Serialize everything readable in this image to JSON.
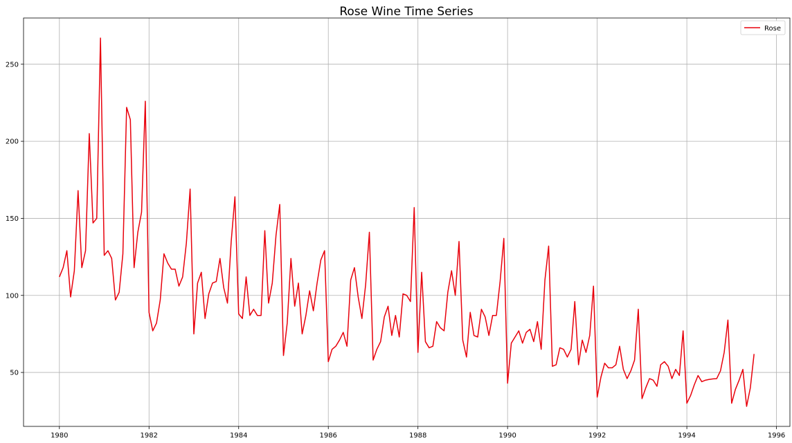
{
  "chart_data": {
    "type": "line",
    "title": "Rose Wine Time Series",
    "xlabel": "",
    "ylabel": "",
    "xlim": [
      1979.2,
      1996.3
    ],
    "ylim": [
      15,
      280
    ],
    "x_ticks": [
      1980,
      1982,
      1984,
      1986,
      1988,
      1990,
      1992,
      1994,
      1996
    ],
    "x_tick_labels": [
      "1980",
      "1982",
      "1984",
      "1986",
      "1988",
      "1990",
      "1992",
      "1994",
      "1996"
    ],
    "y_ticks": [
      50,
      100,
      150,
      200,
      250
    ],
    "y_tick_labels": [
      "50",
      "100",
      "150",
      "200",
      "250"
    ],
    "grid": true,
    "legend_position": "top-right",
    "series": [
      {
        "name": "Rose",
        "color": "#e8000b",
        "start_year": 1980,
        "frequency": "monthly",
        "values": [
          112,
          118,
          129,
          99,
          116,
          168,
          118,
          129,
          205,
          147,
          150,
          267,
          126,
          129,
          124,
          97,
          102,
          127,
          222,
          214,
          118,
          141,
          154,
          226,
          89,
          77,
          82,
          97,
          127,
          121,
          117,
          117,
          106,
          112,
          134,
          169,
          75,
          108,
          115,
          85,
          101,
          108,
          109,
          124,
          105,
          95,
          135,
          164,
          88,
          85,
          112,
          87,
          91,
          87,
          87,
          142,
          95,
          108,
          139,
          159,
          61,
          82,
          124,
          93,
          108,
          75,
          87,
          103,
          90,
          108,
          123,
          129,
          57,
          65,
          67,
          71,
          76,
          67,
          110,
          118,
          99,
          85,
          107,
          141,
          58,
          65,
          70,
          86,
          93,
          74,
          87,
          73,
          101,
          100,
          96,
          157,
          63,
          115,
          70,
          66,
          67,
          83,
          79,
          77,
          102,
          116,
          100,
          135,
          71,
          60,
          89,
          74,
          73,
          91,
          86,
          74,
          87,
          87,
          109,
          137,
          43,
          69,
          73,
          77,
          69,
          76,
          78,
          70,
          83,
          65,
          110,
          132,
          54,
          55,
          66,
          65,
          60,
          65,
          96,
          55,
          71,
          63,
          74,
          106,
          34,
          47,
          56,
          53,
          53,
          55,
          67,
          52,
          46,
          51,
          58,
          91,
          33,
          40,
          46,
          45,
          41,
          55,
          57,
          54,
          46,
          52,
          48,
          77,
          30,
          35,
          42,
          48,
          44,
          45,
          45.5,
          45.8,
          46,
          51,
          63,
          84,
          30,
          39,
          45,
          52,
          28,
          40,
          62
        ]
      }
    ]
  }
}
